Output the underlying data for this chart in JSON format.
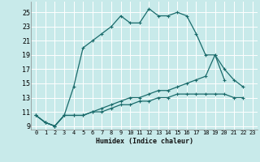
{
  "xlabel": "Humidex (Indice chaleur)",
  "bg_color": "#c8eaea",
  "grid_color": "#ffffff",
  "line_color": "#1a6b6b",
  "xlim": [
    -0.5,
    23.5
  ],
  "ylim": [
    8.5,
    26.5
  ],
  "xticks": [
    0,
    1,
    2,
    3,
    4,
    5,
    6,
    7,
    8,
    9,
    10,
    11,
    12,
    13,
    14,
    15,
    16,
    17,
    18,
    19,
    20,
    21,
    22,
    23
  ],
  "yticks": [
    9,
    11,
    13,
    15,
    17,
    19,
    21,
    23,
    25
  ],
  "line1_x": [
    0,
    1,
    2,
    3,
    4,
    5,
    6,
    7,
    8,
    9,
    10,
    11,
    12,
    13,
    14,
    15,
    16,
    17,
    18,
    19,
    20
  ],
  "line1_y": [
    10.5,
    9.5,
    9,
    10.5,
    14.5,
    20,
    21,
    22,
    23,
    24.5,
    23.5,
    23.5,
    25.5,
    24.5,
    24.5,
    25,
    24.5,
    22,
    19,
    19,
    15.5
  ],
  "line2_x": [
    0,
    1,
    2,
    3,
    4,
    5,
    6,
    7,
    8,
    9,
    10,
    11,
    12,
    13,
    14,
    15,
    16,
    17,
    18,
    19,
    20,
    21,
    22
  ],
  "line2_y": [
    10.5,
    9.5,
    9,
    10.5,
    10.5,
    10.5,
    11,
    11.5,
    12,
    12.5,
    13,
    13,
    13.5,
    14,
    14,
    14.5,
    15,
    15.5,
    16,
    19,
    17,
    15.5,
    14.5
  ],
  "line3_x": [
    0,
    1,
    2,
    3,
    4,
    5,
    6,
    7,
    8,
    9,
    10,
    11,
    12,
    13,
    14,
    15,
    16,
    17,
    18,
    19,
    20,
    21,
    22
  ],
  "line3_y": [
    10.5,
    9.5,
    9,
    10.5,
    10.5,
    10.5,
    11,
    11,
    11.5,
    12,
    12,
    12.5,
    12.5,
    13,
    13,
    13.5,
    13.5,
    13.5,
    13.5,
    13.5,
    13.5,
    13,
    13
  ]
}
